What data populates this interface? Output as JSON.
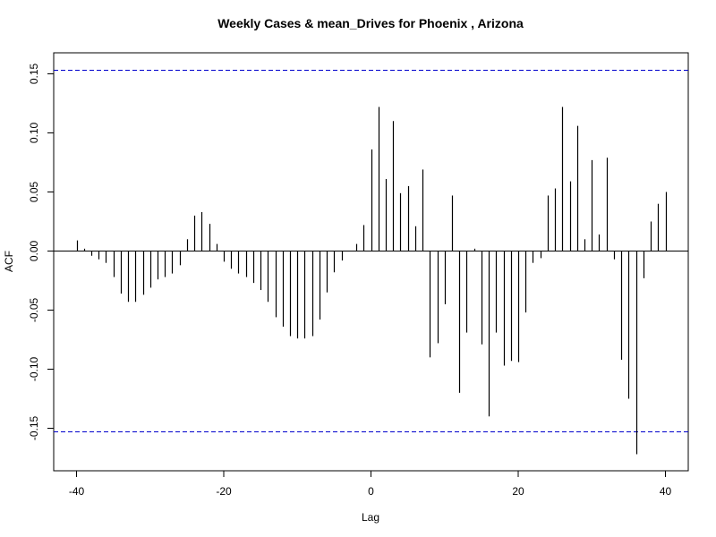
{
  "chart_data": {
    "type": "bar",
    "title": "Weekly Cases & mean_Drives for Phoenix , Arizona",
    "xlabel": "Lag",
    "ylabel": "ACF",
    "xlim": [
      -40,
      40
    ],
    "ylim": [
      -0.17,
      0.155
    ],
    "x_ticks": [
      -40,
      -20,
      0,
      20,
      40
    ],
    "x_tick_labels": [
      "-40",
      "-20",
      "0",
      "20",
      "40"
    ],
    "y_ticks": [
      -0.15,
      -0.1,
      -0.05,
      0.0,
      0.05,
      0.1,
      0.15
    ],
    "y_tick_labels": [
      "-0.15",
      "-0.10",
      "-0.05",
      "0.00",
      "0.05",
      "0.10",
      "0.15"
    ],
    "confidence_limit": 0.153,
    "confidence_color": "#0000cc",
    "bar_color": "#000000",
    "lags": [
      -40,
      -39,
      -38,
      -37,
      -36,
      -35,
      -34,
      -33,
      -32,
      -31,
      -30,
      -29,
      -28,
      -27,
      -26,
      -25,
      -24,
      -23,
      -22,
      -21,
      -20,
      -19,
      -18,
      -17,
      -16,
      -15,
      -14,
      -13,
      -12,
      -11,
      -10,
      -9,
      -8,
      -7,
      -6,
      -5,
      -4,
      -3,
      -2,
      -1,
      0,
      1,
      2,
      3,
      4,
      5,
      6,
      7,
      8,
      9,
      10,
      11,
      12,
      13,
      14,
      15,
      16,
      17,
      18,
      19,
      20,
      21,
      22,
      23,
      24,
      25,
      26,
      27,
      28,
      29,
      30,
      31,
      32,
      33,
      34,
      35,
      36,
      37,
      38,
      39,
      40
    ],
    "values": [
      0.009,
      0.002,
      -0.004,
      -0.007,
      -0.01,
      -0.022,
      -0.036,
      -0.043,
      -0.043,
      -0.037,
      -0.031,
      -0.024,
      -0.022,
      -0.019,
      -0.012,
      0.01,
      0.03,
      0.033,
      0.023,
      0.006,
      -0.009,
      -0.015,
      -0.019,
      -0.022,
      -0.027,
      -0.033,
      -0.043,
      -0.056,
      -0.064,
      -0.072,
      -0.074,
      -0.074,
      -0.072,
      -0.058,
      -0.035,
      -0.018,
      -0.008,
      0.0,
      0.006,
      0.022,
      0.086,
      0.122,
      0.061,
      0.11,
      0.049,
      0.055,
      0.021,
      0.069,
      -0.09,
      -0.078,
      -0.045,
      0.047,
      -0.12,
      -0.069,
      0.002,
      -0.079,
      -0.14,
      -0.069,
      -0.097,
      -0.093,
      -0.094,
      -0.052,
      -0.01,
      -0.006,
      0.047,
      0.053,
      0.122,
      0.059,
      0.106,
      0.01,
      0.077,
      0.014,
      0.079,
      -0.007,
      -0.092,
      -0.125,
      -0.172,
      -0.023,
      0.025,
      0.04,
      0.05
    ]
  }
}
